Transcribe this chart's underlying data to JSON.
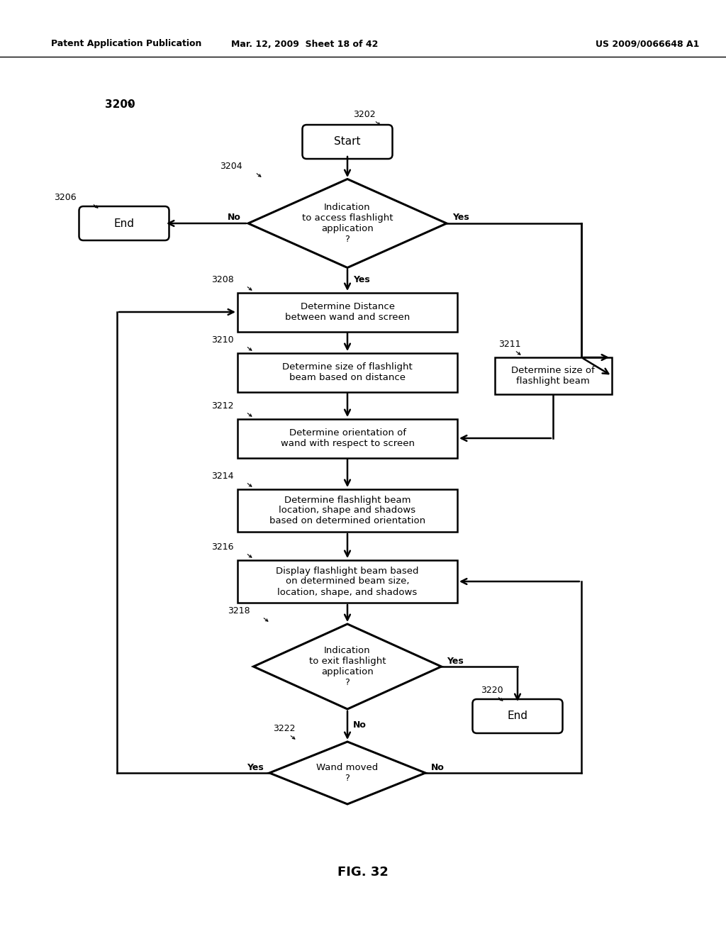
{
  "bg_color": "#ffffff",
  "header_left": "Patent Application Publication",
  "header_mid": "Mar. 12, 2009  Sheet 18 of 42",
  "header_right": "US 2009/0066648 A1",
  "fig_label": "FIG. 32",
  "diagram_label": "3200"
}
